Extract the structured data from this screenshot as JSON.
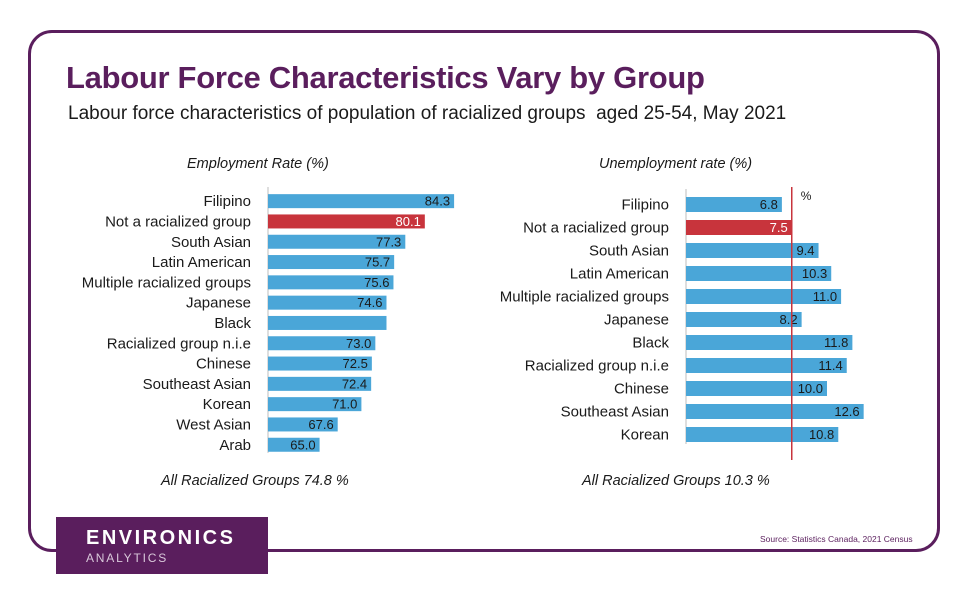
{
  "header": {
    "title": "Labour Force Characteristics Vary by Group",
    "subtitle": "Labour force characteristics of population of racialized groups  aged 25-54, May 2021"
  },
  "colors": {
    "bar": "#4aa6d8",
    "highlight": "#c8343c",
    "brand": "#5a1e5d",
    "axis": "#c8343c"
  },
  "chart_data": [
    {
      "type": "bar",
      "orientation": "horizontal",
      "title": "Employment Rate (%)",
      "categories": [
        "Filipino",
        "Not a racialized group",
        "South Asian",
        "Latin American",
        "Multiple racialized groups",
        "Japanese",
        "Black",
        "Racialized group n.i.e",
        "Chinese",
        "Southeast Asian",
        "Korean",
        "West Asian",
        "Arab"
      ],
      "values": [
        84.3,
        80.1,
        77.3,
        75.7,
        75.6,
        74.6,
        74.6,
        73.0,
        72.5,
        72.4,
        71.0,
        67.6,
        65.0
      ],
      "labels": [
        "84.3",
        "80.1",
        "77.3",
        "75.7",
        "75.6",
        "74.6",
        "",
        "73.0",
        "72.5",
        "72.4",
        "71.0",
        "67.6",
        "65.0"
      ],
      "highlight": "Not a racialized group",
      "summary": "All Racialized Groups 74.8 %"
    },
    {
      "type": "bar",
      "orientation": "horizontal",
      "title": "Unemployment rate (%)",
      "categories": [
        "Filipino",
        "Not a racialized group",
        "South Asian",
        "Latin American",
        "Multiple racialized groups",
        "Japanese",
        "Black",
        "Racialized group n.i.e",
        "Chinese",
        "Southeast Asian",
        "Korean"
      ],
      "values": [
        6.8,
        7.5,
        9.4,
        10.3,
        11.0,
        8.2,
        11.8,
        11.4,
        10.0,
        12.6,
        10.8
      ],
      "labels": [
        "6.8",
        "7.5",
        "9.4",
        "10.3",
        "11.0",
        "8.2",
        "11.8",
        "11.4",
        "10.0",
        "12.6",
        "10.8"
      ],
      "highlight": "Not a racialized group",
      "reference_value": 7.5,
      "reference_label": "%",
      "summary": "All Racialized Groups 10.3 %"
    }
  ],
  "footer": {
    "logo_main": "ENVIRONICS",
    "logo_sub": "ANALYTICS",
    "source": "Source: Statistics Canada, 2021 Census"
  }
}
